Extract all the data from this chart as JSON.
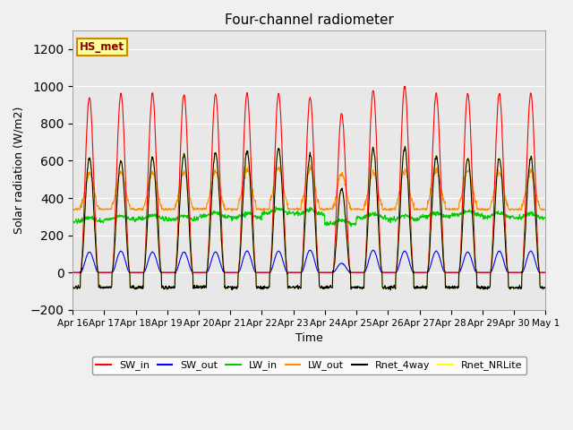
{
  "title": "Four-channel radiometer",
  "xlabel": "Time",
  "ylabel": "Solar radiation (W/m2)",
  "ylim": [
    -200,
    1300
  ],
  "yticks": [
    -200,
    0,
    200,
    400,
    600,
    800,
    1000,
    1200
  ],
  "fig_bg_color": "#f0f0f0",
  "plot_bg_color": "#e8e8e8",
  "grid_color": "#ffffff",
  "colors": {
    "SW_in": "#ff0000",
    "SW_out": "#0000ff",
    "LW_in": "#00cc00",
    "LW_out": "#ff8c00",
    "Rnet_4way": "#000000",
    "Rnet_NRLite": "#ffff00"
  },
  "label_box": "HS_met",
  "label_box_color": "#ffff99",
  "label_box_border": "#cc8800",
  "n_days": 15,
  "x_tick_labels": [
    "Apr 16",
    "Apr 17",
    "Apr 18",
    "Apr 19",
    "Apr 20",
    "Apr 21",
    "Apr 22",
    "Apr 23",
    "Apr 24",
    "Apr 25",
    "Apr 26",
    "Apr 27",
    "Apr 28",
    "Apr 29",
    "Apr 30",
    "May 1"
  ],
  "sunrise_hour": 6.0,
  "sunset_hour": 19.5,
  "SW_in_peak": [
    940,
    960,
    960,
    955,
    955,
    960,
    960,
    940,
    855,
    980,
    1000,
    960,
    960,
    960,
    960
  ],
  "SW_out_peak": [
    110,
    115,
    110,
    110,
    110,
    115,
    115,
    120,
    50,
    120,
    115,
    115,
    110,
    115,
    115
  ],
  "LW_in_base": [
    275,
    285,
    290,
    285,
    300,
    295,
    320,
    315,
    260,
    295,
    285,
    300,
    310,
    300,
    295
  ],
  "LW_out_base": [
    355,
    360,
    360,
    360,
    360,
    370,
    380,
    375,
    350,
    360,
    365,
    375,
    370,
    360,
    360
  ],
  "Rnet_4way_peak": [
    615,
    600,
    620,
    635,
    640,
    650,
    665,
    630,
    450,
    665,
    670,
    625,
    615,
    615,
    615
  ],
  "Rnet_NRLite_peak": [
    618,
    603,
    622,
    638,
    643,
    653,
    668,
    633,
    453,
    668,
    673,
    628,
    618,
    618,
    618
  ],
  "Rnet_night": -80,
  "LW_out_night": 340
}
